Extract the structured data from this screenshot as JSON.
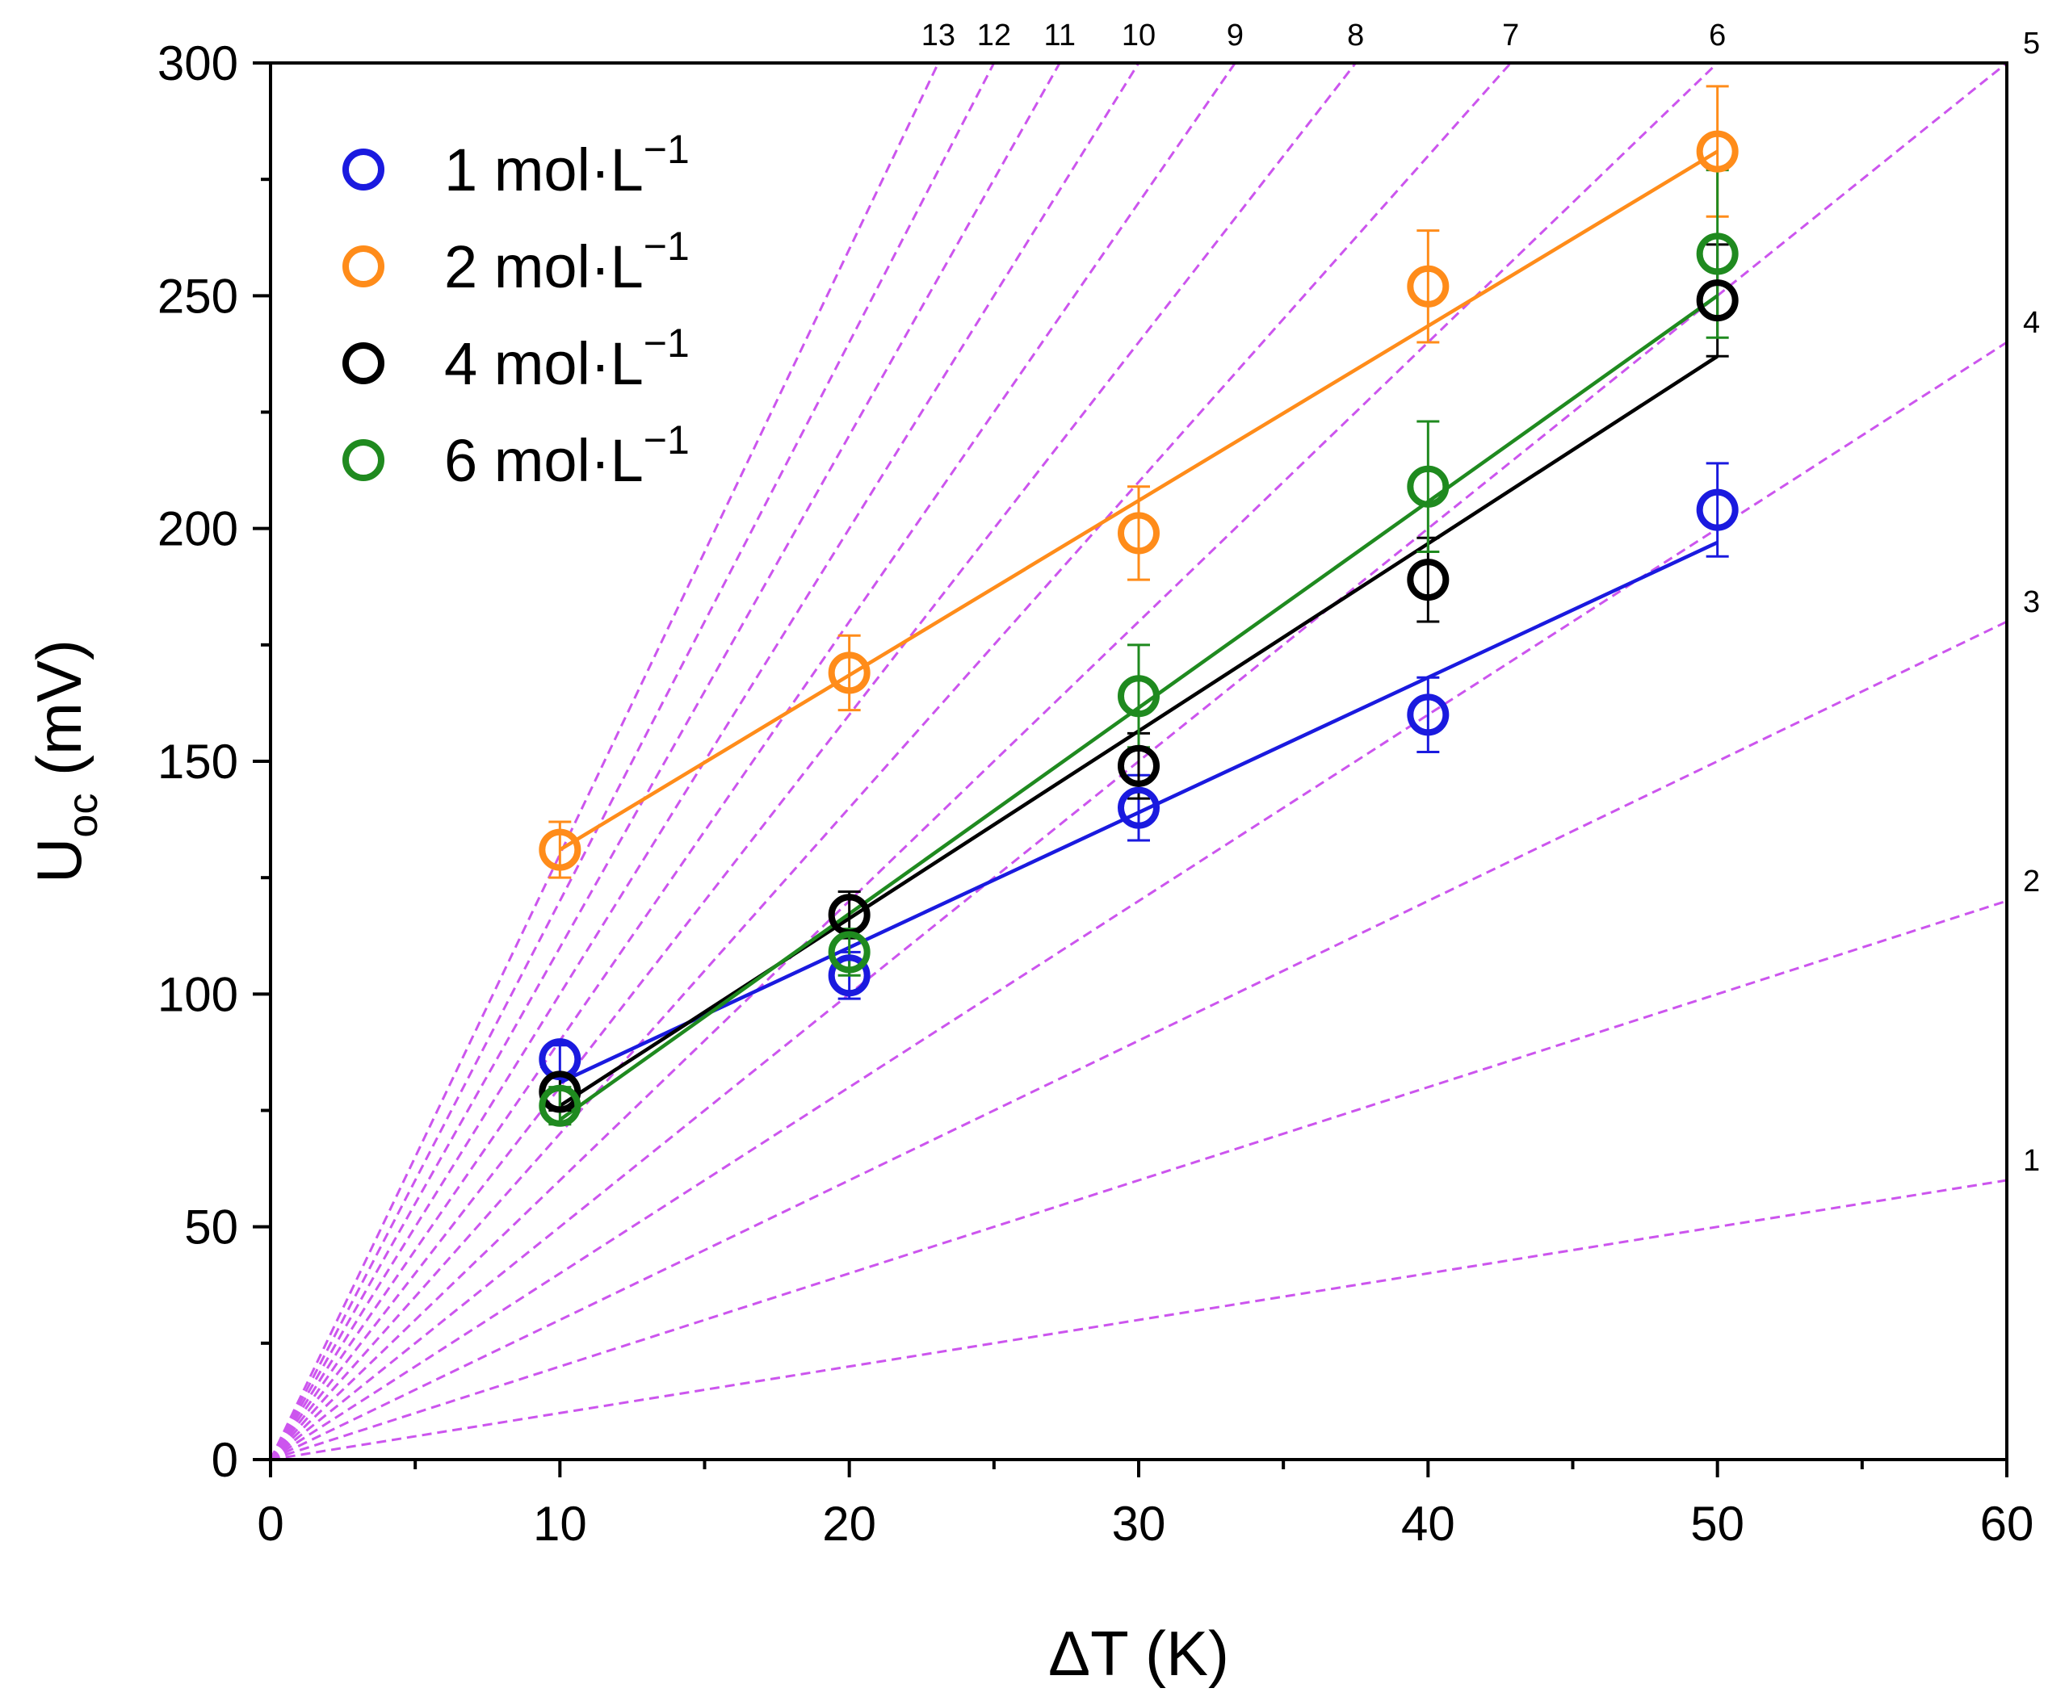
{
  "chart_data": {
    "type": "scatter",
    "xlabel": "ΔT (K)",
    "ylabel": {
      "main": "U",
      "sub": "oc",
      "unit": " (mV)"
    },
    "xlim": [
      0,
      60
    ],
    "ylim": [
      0,
      300
    ],
    "xticks": [
      0,
      10,
      20,
      30,
      40,
      50,
      60
    ],
    "yticks": [
      0,
      50,
      100,
      150,
      200,
      250,
      300
    ],
    "grid": false,
    "legend_position": "top-left",
    "reference_lines": {
      "color": "#cc55ee",
      "style": "dashed",
      "description": "Lines through origin with slope = label (mV/K)",
      "slopes": [
        1,
        2,
        3,
        4,
        5,
        6,
        7,
        8,
        9,
        10,
        11,
        12,
        13
      ],
      "labels": [
        "1",
        "2",
        "3",
        "4",
        "5",
        "6",
        "7",
        "8",
        "9",
        "10",
        "11",
        "12",
        "13"
      ]
    },
    "series": [
      {
        "name": "1 mol·L",
        "superscript": "−1",
        "color": "#1a1adf",
        "x": [
          10,
          20,
          30,
          40,
          50
        ],
        "y": [
          86,
          104,
          140,
          160,
          204
        ],
        "error": [
          3,
          5,
          7,
          8,
          10
        ],
        "fit": {
          "x": [
            10,
            50
          ],
          "y": [
            81,
            197
          ]
        }
      },
      {
        "name": "2 mol·L",
        "superscript": "−1",
        "color": "#ff8c1a",
        "x": [
          10,
          20,
          30,
          40,
          50
        ],
        "y": [
          131,
          169,
          199,
          252,
          281
        ],
        "error": [
          6,
          8,
          10,
          12,
          14
        ],
        "fit": {
          "x": [
            10,
            50
          ],
          "y": [
            131,
            281
          ]
        }
      },
      {
        "name": "4 mol·L",
        "superscript": "−1",
        "color": "#000000",
        "x": [
          10,
          20,
          30,
          40,
          50
        ],
        "y": [
          79,
          117,
          149,
          189,
          249
        ],
        "error": [
          4,
          5,
          7,
          9,
          12
        ],
        "fit": {
          "x": [
            10,
            50
          ],
          "y": [
            76,
            237
          ]
        }
      },
      {
        "name": "6 mol·L",
        "superscript": "−1",
        "color": "#1f8a1f",
        "x": [
          10,
          20,
          30,
          40,
          50
        ],
        "y": [
          76,
          109,
          164,
          209,
          259
        ],
        "error": [
          4,
          5,
          11,
          14,
          18
        ],
        "fit": {
          "x": [
            10,
            50
          ],
          "y": [
            73,
            250
          ]
        }
      }
    ]
  }
}
